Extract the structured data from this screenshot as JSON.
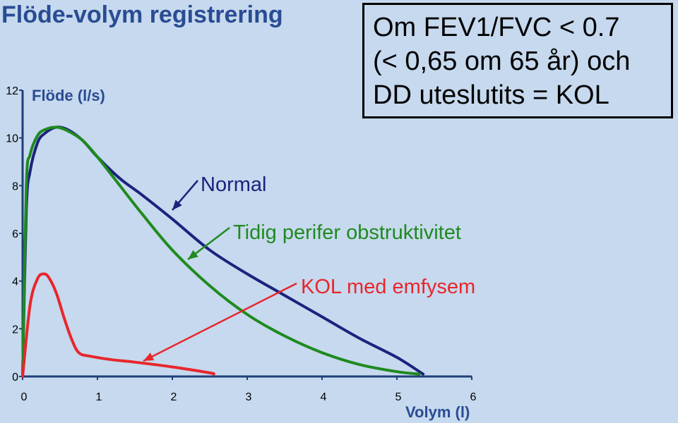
{
  "title": "Flöde-volym registrering",
  "info_box": {
    "lines": [
      "Om FEV1/FVC < 0.7",
      "(< 0,65 om 65 år) och",
      "DD uteslutits = KOL"
    ]
  },
  "colors": {
    "background": "#c6d9ee",
    "axis": "#1f3f7a",
    "axis_label": "#2a4c93",
    "normal": "#1a237e",
    "early": "#1f8a1f",
    "copd": "#e8262c"
  },
  "chart_data": {
    "type": "line",
    "xlabel": "Volym (l)",
    "ylabel": "Flöde (l/s)",
    "xlim": [
      0,
      6
    ],
    "ylim": [
      0,
      12
    ],
    "x_ticks": [
      "0",
      "1",
      "2",
      "3",
      "4",
      "5",
      "6"
    ],
    "y_ticks": [
      "0",
      "2",
      "4",
      "6",
      "8",
      "10",
      "12"
    ],
    "grid": false,
    "series": [
      {
        "name": "Normal",
        "color": "#1a237e",
        "x": [
          0,
          0.05,
          0.1,
          0.2,
          0.3,
          0.45,
          0.6,
          0.8,
          1.0,
          1.3,
          1.6,
          2.0,
          2.5,
          3.0,
          3.5,
          4.0,
          4.5,
          5.0,
          5.35
        ],
        "y": [
          0,
          7.0,
          8.6,
          9.8,
          10.2,
          10.45,
          10.35,
          9.9,
          9.2,
          8.3,
          7.6,
          6.6,
          5.3,
          4.3,
          3.4,
          2.5,
          1.6,
          0.8,
          0.1
        ]
      },
      {
        "name": "Tidig perifer obstruktivitet",
        "color": "#1f8a1f",
        "x": [
          0,
          0.05,
          0.1,
          0.2,
          0.3,
          0.45,
          0.6,
          0.8,
          1.0,
          1.3,
          1.6,
          2.0,
          2.5,
          3.0,
          3.5,
          4.0,
          4.5,
          5.0,
          5.3
        ],
        "y": [
          0,
          8.0,
          9.3,
          10.1,
          10.35,
          10.45,
          10.3,
          9.9,
          9.2,
          8.0,
          6.8,
          5.3,
          3.8,
          2.6,
          1.7,
          1.0,
          0.5,
          0.2,
          0.1
        ]
      },
      {
        "name": "KOL med emfysem",
        "color": "#e8262c",
        "x": [
          0,
          0.1,
          0.2,
          0.28,
          0.35,
          0.45,
          0.55,
          0.65,
          0.75,
          0.9,
          1.2,
          1.5,
          2.0,
          2.5,
          2.55
        ],
        "y": [
          0,
          3.0,
          4.1,
          4.3,
          4.15,
          3.5,
          2.5,
          1.6,
          1.0,
          0.85,
          0.7,
          0.6,
          0.4,
          0.15,
          0.1
        ]
      }
    ],
    "annotations": [
      {
        "text": "Normal",
        "color": "#1a237e"
      },
      {
        "text": "Tidig perifer obstruktivitet",
        "color": "#1f8a1f"
      },
      {
        "text": "KOL med emfysem",
        "color": "#e8262c"
      }
    ]
  }
}
